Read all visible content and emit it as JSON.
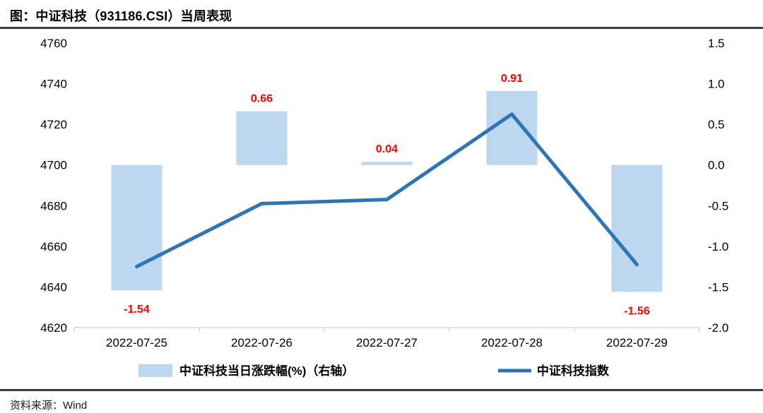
{
  "header": {
    "title": "图：中证科技（931186.CSI）当周表现"
  },
  "footer": {
    "source": "资料来源：Wind"
  },
  "colors": {
    "bar_fill": "#BDD7EE",
    "line_stroke": "#2E75B6",
    "data_label": "#FF0000",
    "axis_line": "#D9D9D9",
    "tick_text": "#000000",
    "legend_text": "#000000",
    "rule": "#333F50"
  },
  "chart_data": {
    "type": "bar",
    "subtype": "bar+line combo",
    "title": "图：中证科技（931186.CSI）当周表现",
    "categories": [
      "2022-07-25",
      "2022-07-26",
      "2022-07-27",
      "2022-07-28",
      "2022-07-29"
    ],
    "series": [
      {
        "name": "中证科技当日涨跌幅(%)（右轴）",
        "type": "bar",
        "axis": "right",
        "values": [
          -1.54,
          0.66,
          0.04,
          0.91,
          -1.56
        ],
        "data_labels": [
          "-1.54",
          "0.66",
          "0.04",
          "0.91",
          "-1.56"
        ]
      },
      {
        "name": "中证科技指数",
        "type": "line",
        "axis": "left",
        "values": [
          4650,
          4681,
          4683,
          4725,
          4651
        ]
      }
    ],
    "left_axis": {
      "min": 4620,
      "max": 4760,
      "step": 20,
      "tick_labels": [
        "4760",
        "4740",
        "4720",
        "4700",
        "4680",
        "4660",
        "4640",
        "4620"
      ]
    },
    "right_axis": {
      "min": -2.0,
      "max": 1.5,
      "step": 0.5,
      "tick_labels": [
        "1.5",
        "1.0",
        "0.5",
        "0.0",
        "-0.5",
        "-1.0",
        "-1.5",
        "-2.0"
      ]
    },
    "legend_position": "bottom",
    "grid": false
  }
}
